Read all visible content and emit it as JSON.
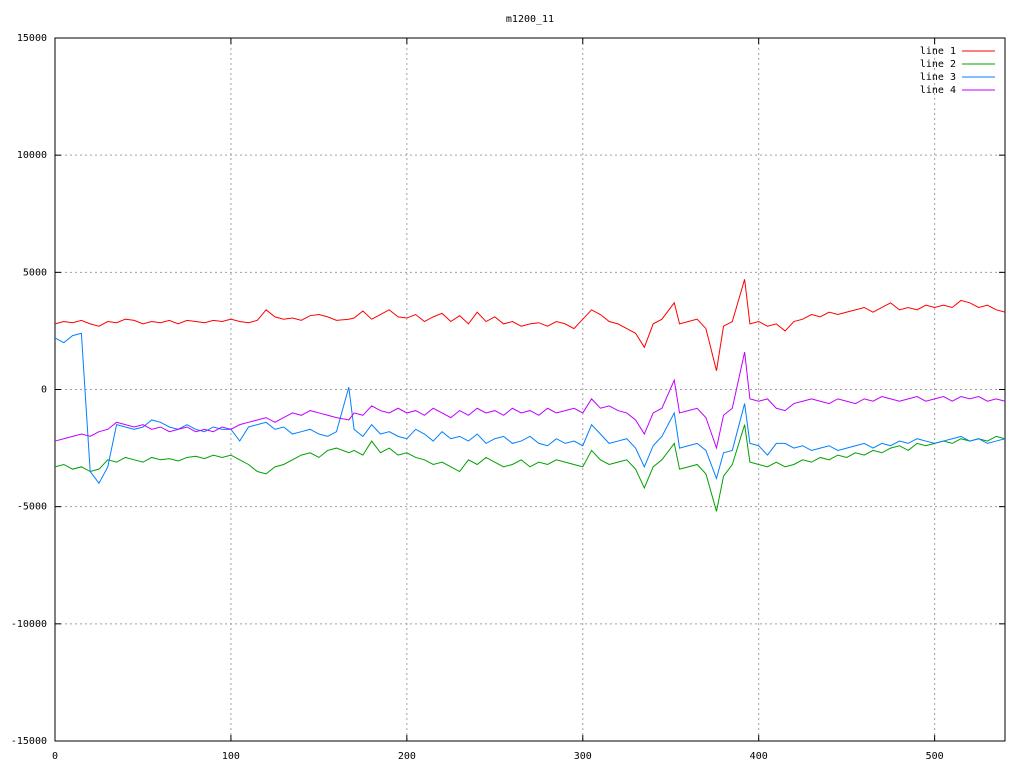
{
  "chart_data": {
    "type": "line",
    "title": "m1200_11",
    "x": [
      0,
      5,
      10,
      15,
      20,
      25,
      30,
      35,
      40,
      45,
      50,
      55,
      60,
      65,
      70,
      75,
      80,
      85,
      90,
      95,
      100,
      105,
      110,
      115,
      120,
      125,
      130,
      135,
      140,
      145,
      150,
      155,
      160,
      167,
      170,
      175,
      180,
      185,
      190,
      195,
      200,
      205,
      210,
      215,
      220,
      225,
      230,
      235,
      240,
      245,
      250,
      255,
      260,
      265,
      270,
      275,
      280,
      285,
      290,
      295,
      300,
      305,
      310,
      315,
      320,
      325,
      330,
      335,
      340,
      345,
      352,
      355,
      360,
      365,
      370,
      376,
      380,
      385,
      392,
      395,
      400,
      405,
      410,
      415,
      420,
      425,
      430,
      435,
      440,
      445,
      450,
      455,
      460,
      465,
      470,
      475,
      480,
      485,
      490,
      495,
      500,
      505,
      510,
      515,
      520,
      525,
      530,
      535,
      540
    ],
    "series": [
      {
        "name": "line 1",
        "color": "#ff0000",
        "values": [
          2800,
          2900,
          2850,
          2950,
          2800,
          2700,
          2900,
          2850,
          3000,
          2950,
          2800,
          2900,
          2850,
          2950,
          2800,
          2950,
          2900,
          2850,
          2950,
          2900,
          3000,
          2900,
          2850,
          2950,
          3400,
          3100,
          3000,
          3050,
          2950,
          3150,
          3200,
          3100,
          2950,
          3000,
          3050,
          3350,
          3000,
          3200,
          3400,
          3100,
          3050,
          3200,
          2900,
          3100,
          3250,
          2900,
          3150,
          2800,
          3300,
          2900,
          3100,
          2800,
          2900,
          2700,
          2800,
          2850,
          2700,
          2900,
          2800,
          2600,
          3000,
          3400,
          3200,
          2900,
          2800,
          2600,
          2400,
          1800,
          2800,
          3000,
          3700,
          2800,
          2900,
          3000,
          2600,
          800,
          2700,
          2900,
          4700,
          2800,
          2900,
          2700,
          2800,
          2500,
          2900,
          3000,
          3200,
          3100,
          3300,
          3200,
          3300,
          3400,
          3500,
          3300,
          3500,
          3700,
          3400,
          3500,
          3400,
          3600,
          3500,
          3600,
          3500,
          3800,
          3700,
          3500,
          3600,
          3400,
          3300
        ]
      },
      {
        "name": "line 2",
        "color": "#00a000",
        "values": [
          -3300,
          -3200,
          -3400,
          -3300,
          -3500,
          -3400,
          -3000,
          -3100,
          -2900,
          -3000,
          -3100,
          -2900,
          -3000,
          -2950,
          -3050,
          -2900,
          -2850,
          -2950,
          -2800,
          -2900,
          -2800,
          -3000,
          -3200,
          -3500,
          -3600,
          -3300,
          -3200,
          -3000,
          -2800,
          -2700,
          -2900,
          -2600,
          -2500,
          -2700,
          -2600,
          -2800,
          -2200,
          -2700,
          -2500,
          -2800,
          -2700,
          -2900,
          -3000,
          -3200,
          -3100,
          -3300,
          -3500,
          -3000,
          -3200,
          -2900,
          -3100,
          -3300,
          -3200,
          -3000,
          -3300,
          -3100,
          -3200,
          -3000,
          -3100,
          -3200,
          -3300,
          -2600,
          -3000,
          -3200,
          -3100,
          -3000,
          -3400,
          -4200,
          -3300,
          -3000,
          -2300,
          -3400,
          -3300,
          -3200,
          -3600,
          -5200,
          -3700,
          -3200,
          -1500,
          -3100,
          -3200,
          -3300,
          -3100,
          -3300,
          -3200,
          -3000,
          -3100,
          -2900,
          -3000,
          -2800,
          -2900,
          -2700,
          -2800,
          -2600,
          -2700,
          -2500,
          -2400,
          -2600,
          -2300,
          -2400,
          -2300,
          -2200,
          -2300,
          -2100,
          -2200,
          -2100,
          -2200,
          -2000,
          -2100
        ]
      },
      {
        "name": "line 3",
        "color": "#0080ff",
        "values": [
          2200,
          2000,
          2300,
          2400,
          -3500,
          -4000,
          -3300,
          -1500,
          -1600,
          -1700,
          -1600,
          -1300,
          -1400,
          -1600,
          -1700,
          -1500,
          -1700,
          -1800,
          -1600,
          -1700,
          -1700,
          -2200,
          -1600,
          -1500,
          -1400,
          -1700,
          -1600,
          -1900,
          -1800,
          -1700,
          -1900,
          -2000,
          -1800,
          100,
          -1700,
          -2000,
          -1500,
          -1900,
          -1800,
          -2000,
          -2100,
          -1700,
          -1900,
          -2200,
          -1800,
          -2100,
          -2000,
          -2200,
          -1900,
          -2300,
          -2100,
          -2000,
          -2300,
          -2200,
          -2000,
          -2300,
          -2400,
          -2100,
          -2300,
          -2200,
          -2400,
          -1500,
          -1900,
          -2300,
          -2200,
          -2100,
          -2500,
          -3300,
          -2400,
          -2000,
          -1000,
          -2500,
          -2400,
          -2300,
          -2600,
          -3800,
          -2700,
          -2600,
          -600,
          -2300,
          -2400,
          -2800,
          -2300,
          -2300,
          -2500,
          -2400,
          -2600,
          -2500,
          -2400,
          -2600,
          -2500,
          -2400,
          -2300,
          -2500,
          -2300,
          -2400,
          -2200,
          -2300,
          -2100,
          -2200,
          -2300,
          -2200,
          -2100,
          -2000,
          -2200,
          -2100,
          -2300,
          -2200,
          -2100
        ]
      },
      {
        "name": "line 4",
        "color": "#c000ff",
        "values": [
          -2200,
          -2100,
          -2000,
          -1900,
          -2000,
          -1800,
          -1700,
          -1400,
          -1500,
          -1600,
          -1500,
          -1700,
          -1600,
          -1800,
          -1700,
          -1600,
          -1800,
          -1700,
          -1800,
          -1600,
          -1700,
          -1500,
          -1400,
          -1300,
          -1200,
          -1400,
          -1200,
          -1000,
          -1100,
          -900,
          -1000,
          -1100,
          -1200,
          -1300,
          -1000,
          -1100,
          -700,
          -900,
          -1000,
          -800,
          -1000,
          -900,
          -1100,
          -800,
          -1000,
          -1200,
          -900,
          -1100,
          -800,
          -1000,
          -900,
          -1100,
          -800,
          -1000,
          -900,
          -1100,
          -800,
          -1000,
          -900,
          -800,
          -1000,
          -400,
          -800,
          -700,
          -900,
          -1000,
          -1300,
          -1900,
          -1000,
          -800,
          400,
          -1000,
          -900,
          -800,
          -1200,
          -2500,
          -1100,
          -800,
          1600,
          -400,
          -500,
          -400,
          -800,
          -900,
          -600,
          -500,
          -400,
          -500,
          -600,
          -400,
          -500,
          -600,
          -400,
          -500,
          -300,
          -400,
          -500,
          -400,
          -300,
          -500,
          -400,
          -300,
          -500,
          -300,
          -400,
          -300,
          -500,
          -400,
          -500
        ]
      }
    ],
    "xlim": [
      0,
      540
    ],
    "xticks": [
      0,
      100,
      200,
      300,
      400,
      500
    ],
    "ylim": [
      -15000,
      15000
    ],
    "yticks": [
      -15000,
      -10000,
      -5000,
      0,
      5000,
      10000,
      15000
    ],
    "grid": true,
    "legend": "top-right"
  }
}
